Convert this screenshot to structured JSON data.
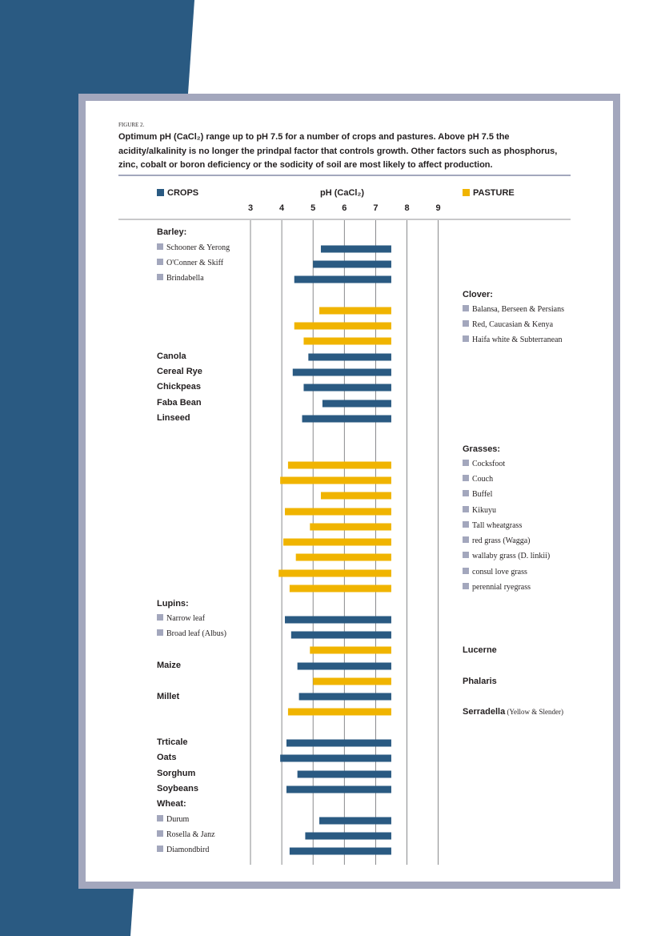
{
  "figure_label": "FIGURE 2.",
  "caption_lines": [
    "Optimum pH (CaCl₂) range up to pH 7.5 for a number of crops and pastures. Above pH 7.5 the",
    "acidity/alkalinity is no longer the prindpal factor that controls growth. Other factors such as phosphorus,",
    "zinc, cobalt or boron deficiency or the sodicity of soil are most likely to affect production."
  ],
  "legend": {
    "crops": "CROPS",
    "axis_title": "pH (CaCl₂)",
    "pasture": "PASTURE"
  },
  "colors": {
    "crops": "#2a5a82",
    "pasture": "#f0b400",
    "frame": "#a3a7bd",
    "background_shape": "#2a5a82"
  },
  "left_labels": [
    {
      "text": "Barley:",
      "kind": "heading"
    },
    {
      "text": "Schooner & Yerong",
      "kind": "sub"
    },
    {
      "text": "O'Conner & Skiff",
      "kind": "sub"
    },
    {
      "text": "Brindabella",
      "kind": "sub"
    },
    {
      "text": "Canola",
      "kind": "heading"
    },
    {
      "text": "Cereal Rye",
      "kind": "heading"
    },
    {
      "text": "Chickpeas",
      "kind": "heading"
    },
    {
      "text": "Faba Bean",
      "kind": "heading"
    },
    {
      "text": "Linseed",
      "kind": "heading"
    },
    {
      "text": "Lupins:",
      "kind": "heading"
    },
    {
      "text": "Narrow leaf",
      "kind": "sub"
    },
    {
      "text": "Broad leaf (Albus)",
      "kind": "sub"
    },
    {
      "text": "Maize",
      "kind": "heading"
    },
    {
      "text": "Millet",
      "kind": "heading"
    },
    {
      "text": "Trticale",
      "kind": "heading"
    },
    {
      "text": "Oats",
      "kind": "heading"
    },
    {
      "text": "Sorghum",
      "kind": "heading"
    },
    {
      "text": "Soybeans",
      "kind": "heading"
    },
    {
      "text": "Wheat:",
      "kind": "heading"
    },
    {
      "text": "Durum",
      "kind": "sub"
    },
    {
      "text": "Rosella & Janz",
      "kind": "sub"
    },
    {
      "text": "Diamondbird",
      "kind": "sub"
    }
  ],
  "right_labels": [
    {
      "text": "Clover:",
      "kind": "heading"
    },
    {
      "text": "Balansa, Berseen & Persians",
      "kind": "sub"
    },
    {
      "text": "Red, Caucasian & Kenya",
      "kind": "sub"
    },
    {
      "text": "Haifa white & Subterranean",
      "kind": "sub"
    },
    {
      "text": "Grasses:",
      "kind": "heading"
    },
    {
      "text": "Cocksfoot",
      "kind": "sub"
    },
    {
      "text": "Couch",
      "kind": "sub"
    },
    {
      "text": "Buffel",
      "kind": "sub"
    },
    {
      "text": "Kikuyu",
      "kind": "sub"
    },
    {
      "text": "Tall wheatgrass",
      "kind": "sub"
    },
    {
      "text": "red grass (Wagga)",
      "kind": "sub"
    },
    {
      "text": "wallaby grass (D. linkii)",
      "kind": "sub"
    },
    {
      "text": "consul love grass",
      "kind": "sub"
    },
    {
      "text": "perennial ryegrass",
      "kind": "sub"
    },
    {
      "text": "Lucerne",
      "kind": "heading"
    },
    {
      "text": "Phalaris",
      "kind": "heading"
    },
    {
      "text": "Serradella",
      "kind": "heading",
      "note": "(Yellow & Slender)"
    }
  ],
  "chart_data": {
    "type": "bar",
    "orientation": "horizontal-range",
    "x_ticks": [
      3,
      4,
      5,
      6,
      7,
      8,
      9
    ],
    "xlim": [
      3,
      9
    ],
    "grid": true,
    "series": [
      {
        "name": "CROPS",
        "color": "#2a5a82"
      },
      {
        "name": "PASTURE",
        "color": "#f0b400"
      }
    ],
    "ranges": [
      {
        "label": "Schooner & Yerong",
        "group": "crops",
        "low": 5.25,
        "high": 7.5
      },
      {
        "label": "O'Conner & Skiff",
        "group": "crops",
        "low": 5.0,
        "high": 7.5
      },
      {
        "label": "Brindabella",
        "group": "crops",
        "low": 4.4,
        "high": 7.5
      },
      {
        "label": "Balansa, Berseen & Persians",
        "group": "pasture",
        "low": 5.2,
        "high": 7.5
      },
      {
        "label": "Red, Caucasian & Kenya",
        "group": "pasture",
        "low": 4.4,
        "high": 7.5
      },
      {
        "label": "Haifa white & Subterranean",
        "group": "pasture",
        "low": 4.7,
        "high": 7.5
      },
      {
        "label": "Canola",
        "group": "crops",
        "low": 4.85,
        "high": 7.5
      },
      {
        "label": "Cereal Rye",
        "group": "crops",
        "low": 4.35,
        "high": 7.5
      },
      {
        "label": "Chickpeas",
        "group": "crops",
        "low": 4.7,
        "high": 7.5
      },
      {
        "label": "Faba Bean",
        "group": "crops",
        "low": 5.3,
        "high": 7.5
      },
      {
        "label": "Linseed",
        "group": "crops",
        "low": 4.65,
        "high": 7.5
      },
      {
        "label": "Cocksfoot",
        "group": "pasture",
        "low": 4.2,
        "high": 7.5
      },
      {
        "label": "Couch",
        "group": "pasture",
        "low": 3.95,
        "high": 7.5
      },
      {
        "label": "Buffel",
        "group": "pasture",
        "low": 5.25,
        "high": 7.5
      },
      {
        "label": "Kikuyu",
        "group": "pasture",
        "low": 4.1,
        "high": 7.5
      },
      {
        "label": "Tall wheatgrass",
        "group": "pasture",
        "low": 4.9,
        "high": 7.5
      },
      {
        "label": "red grass (Wagga)",
        "group": "pasture",
        "low": 4.05,
        "high": 7.5
      },
      {
        "label": "wallaby grass (D. linkii)",
        "group": "pasture",
        "low": 4.45,
        "high": 7.5
      },
      {
        "label": "consul love grass",
        "group": "pasture",
        "low": 3.9,
        "high": 7.5
      },
      {
        "label": "perennial ryegrass",
        "group": "pasture",
        "low": 4.25,
        "high": 7.5
      },
      {
        "label": "Narrow leaf",
        "group": "crops",
        "low": 4.1,
        "high": 7.5
      },
      {
        "label": "Broad leaf (Albus)",
        "group": "crops",
        "low": 4.3,
        "high": 7.5
      },
      {
        "label": "Lucerne",
        "group": "pasture",
        "low": 4.9,
        "high": 7.5
      },
      {
        "label": "Maize",
        "group": "crops",
        "low": 4.5,
        "high": 7.5
      },
      {
        "label": "Phalaris",
        "group": "pasture",
        "low": 5.0,
        "high": 7.5
      },
      {
        "label": "Millet",
        "group": "crops",
        "low": 4.55,
        "high": 7.5
      },
      {
        "label": "Serradella (Yellow & Slender)",
        "group": "pasture",
        "low": 4.2,
        "high": 7.5
      },
      {
        "label": "Trticale",
        "group": "crops",
        "low": 4.15,
        "high": 7.5
      },
      {
        "label": "Oats",
        "group": "crops",
        "low": 3.95,
        "high": 7.5
      },
      {
        "label": "Sorghum",
        "group": "crops",
        "low": 4.5,
        "high": 7.5
      },
      {
        "label": "Soybeans",
        "group": "crops",
        "low": 4.15,
        "high": 7.5
      },
      {
        "label": "Durum",
        "group": "crops",
        "low": 5.2,
        "high": 7.5
      },
      {
        "label": "Rosella & Janz",
        "group": "crops",
        "low": 4.75,
        "high": 7.5
      },
      {
        "label": "Diamondbird",
        "group": "crops",
        "low": 4.25,
        "high": 7.5
      }
    ]
  }
}
